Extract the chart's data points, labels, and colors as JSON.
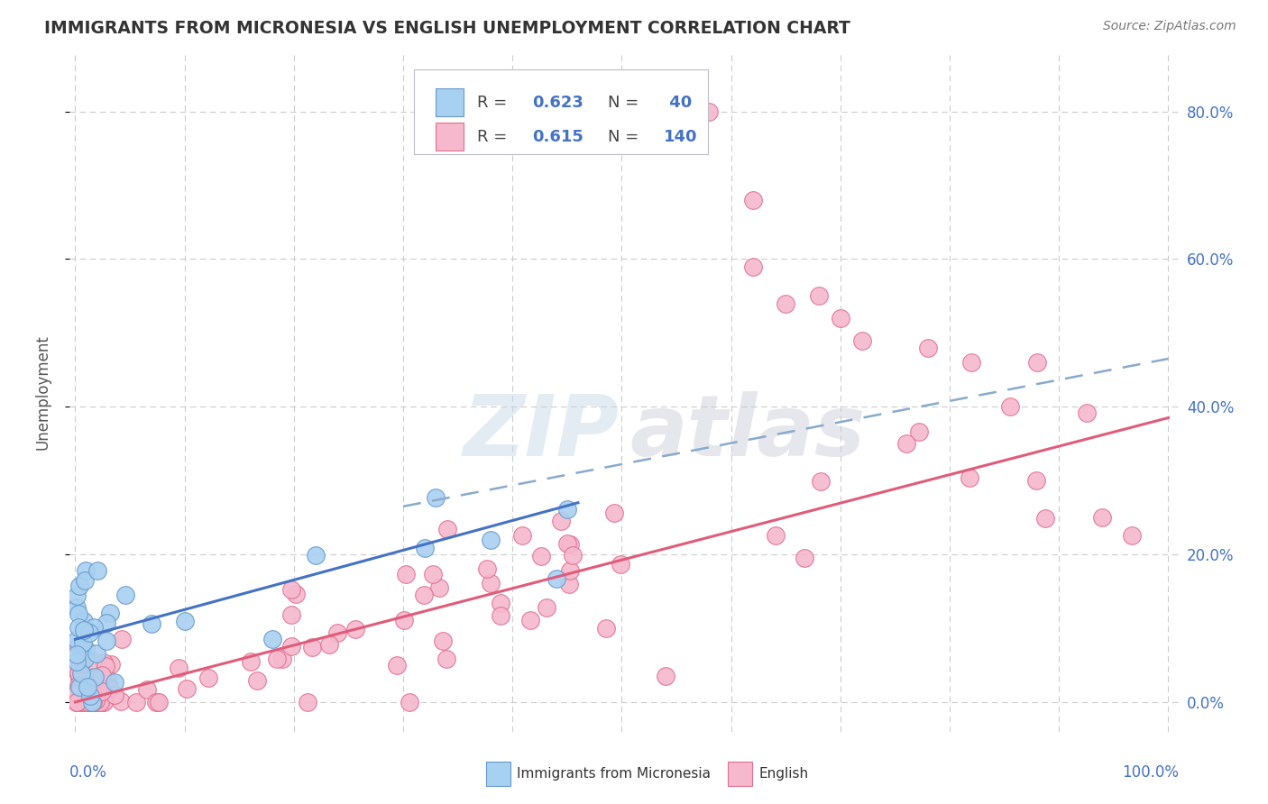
{
  "title": "IMMIGRANTS FROM MICRONESIA VS ENGLISH UNEMPLOYMENT CORRELATION CHART",
  "source": "Source: ZipAtlas.com",
  "ylabel": "Unemployment",
  "y_ticks": [
    0.0,
    0.2,
    0.4,
    0.6,
    0.8
  ],
  "y_tick_labels": [
    "0.0%",
    "20.0%",
    "40.0%",
    "60.0%",
    "80.0%"
  ],
  "color_blue_fill": "#A8D0F0",
  "color_blue_edge": "#6699CC",
  "color_pink_fill": "#F5B8CC",
  "color_pink_edge": "#E07090",
  "color_line_blue": "#4472C4",
  "color_line_pink": "#E05C7A",
  "color_dashed": "#88AACC",
  "color_grid": "#CCCCCC",
  "color_title": "#333333",
  "color_source": "#777777",
  "color_axis_label": "#4472C4",
  "color_ylabel": "#555555",
  "legend_r1": "R = 0.623",
  "legend_n1": "N =  40",
  "legend_r2": "R = 0.615",
  "legend_n2": "N = 140",
  "watermark_zip_color": "#C8D8E8",
  "watermark_atlas_color": "#C8C8D8",
  "blue_line_x0": 0.0,
  "blue_line_y0": 0.085,
  "blue_line_x1": 0.46,
  "blue_line_y1": 0.27,
  "pink_line_x0": 0.0,
  "pink_line_y0": 0.0,
  "pink_line_x1": 1.0,
  "pink_line_y1": 0.385,
  "dashed_line_x0": 0.3,
  "dashed_line_y0": 0.265,
  "dashed_line_x1": 1.0,
  "dashed_line_y1": 0.465,
  "xlim_min": -0.005,
  "xlim_max": 1.01,
  "ylim_min": -0.04,
  "ylim_max": 0.88
}
